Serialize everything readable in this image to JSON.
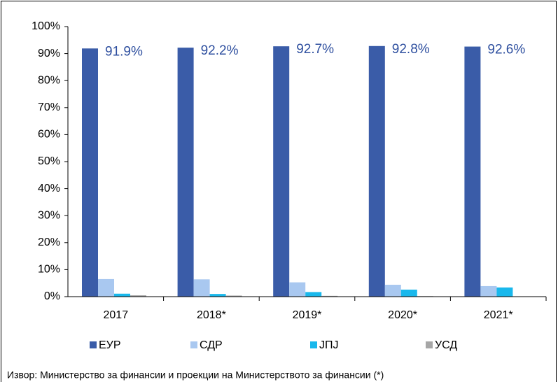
{
  "chart_data": {
    "type": "bar",
    "categories": [
      "2017",
      "2018*",
      "2019*",
      "2020*",
      "2021*"
    ],
    "series": [
      {
        "name": "ЕУР",
        "color": "#3a5ca8",
        "values": [
          91.9,
          92.2,
          92.7,
          92.8,
          92.6
        ],
        "value_labels": [
          "91.9%",
          "92.2%",
          "92.7%",
          "92.8%",
          "92.6%"
        ]
      },
      {
        "name": "СДР",
        "color": "#a9c8f0",
        "values": [
          6.5,
          6.4,
          5.3,
          4.4,
          3.9
        ]
      },
      {
        "name": "ЈПЈ",
        "color": "#19b8ec",
        "values": [
          1.1,
          1.0,
          1.7,
          2.6,
          3.4
        ]
      },
      {
        "name": "УСД",
        "color": "#a6a6a6",
        "values": [
          0.5,
          0.4,
          0.3,
          0.2,
          0.1
        ]
      }
    ],
    "ylim": [
      0,
      100
    ],
    "yticks": [
      {
        "value": 0,
        "label": "0%"
      },
      {
        "value": 10,
        "label": "10%"
      },
      {
        "value": 20,
        "label": "20%"
      },
      {
        "value": 30,
        "label": "30%"
      },
      {
        "value": 40,
        "label": "40%"
      },
      {
        "value": 50,
        "label": "50%"
      },
      {
        "value": 60,
        "label": "60%"
      },
      {
        "value": 70,
        "label": "70%"
      },
      {
        "value": 80,
        "label": "80%"
      },
      {
        "value": 90,
        "label": "90%"
      },
      {
        "value": 100,
        "label": "100%"
      }
    ],
    "legend": "bottom",
    "source": "Извор: Министерство за финансии и проекции на Министерството за финансии (*)"
  }
}
